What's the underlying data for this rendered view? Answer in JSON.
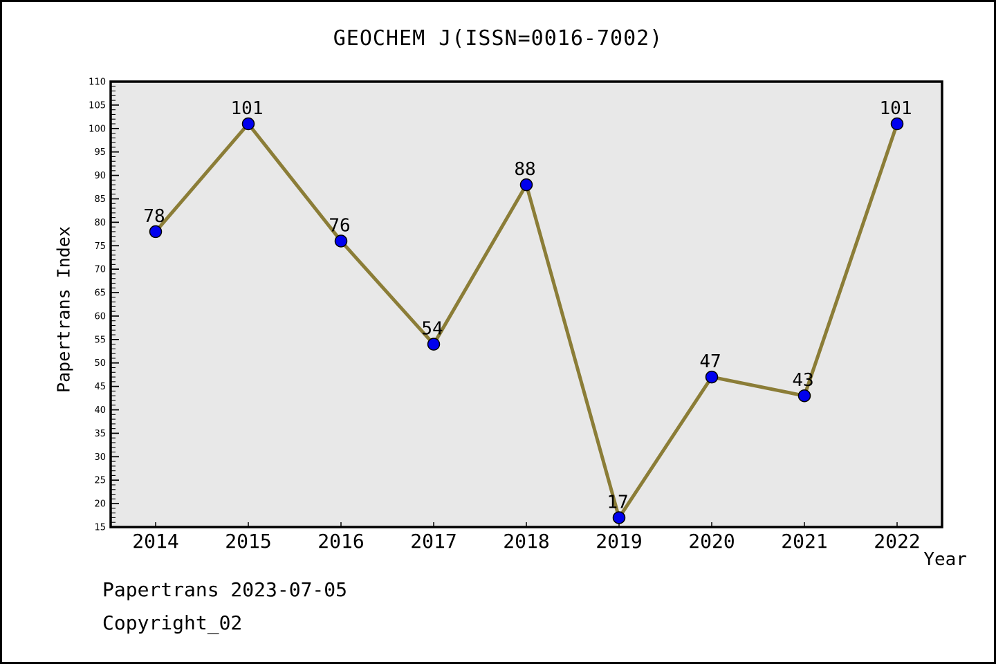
{
  "header": {
    "title": "GEOCHEM J(ISSN=0016-7002)"
  },
  "footer": {
    "line1": "Papertrans 2023-07-05",
    "line2": "Copyright_02"
  },
  "chart_data": {
    "type": "line",
    "title": "GEOCHEM J(ISSN=0016-7002)",
    "xlabel": "Year",
    "ylabel": "Papertrans Index",
    "categories": [
      2014,
      2015,
      2016,
      2017,
      2018,
      2019,
      2020,
      2021,
      2022
    ],
    "values": [
      78,
      101,
      76,
      54,
      88,
      17,
      47,
      43,
      101
    ],
    "point_labels": [
      "78",
      "101",
      "76",
      "54",
      "88",
      "17",
      "47",
      "43",
      "101"
    ],
    "ylim": [
      15,
      110
    ],
    "y_major_step": 5,
    "y_minor_step": 1,
    "y_tick_labels": [
      15,
      20,
      25,
      30,
      35,
      40,
      45,
      50,
      55,
      60,
      65,
      70,
      75,
      80,
      85,
      90,
      95,
      100,
      105,
      110
    ],
    "grid": false,
    "legend": null,
    "colors": {
      "line": "#8B7D37",
      "marker_fill": "#0000EE",
      "marker_edge": "#000000",
      "plot_background": "#E8E8E8",
      "axis": "#000000",
      "text": "#000000",
      "page_background": "#FFFFFF"
    }
  }
}
